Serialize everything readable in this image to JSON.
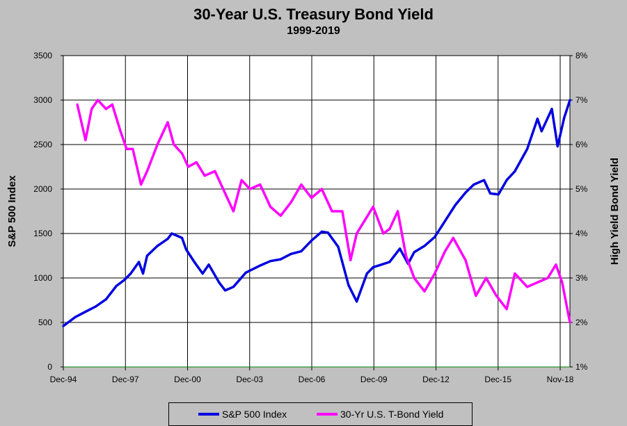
{
  "chart_data": {
    "type": "line",
    "title": "30-Year U.S. Treasury Bond Yield",
    "subtitle": "1999-2019",
    "xlabel": "",
    "ylabel_left": "S&P 500 Index",
    "ylabel_right": "High Yield Bond Yield",
    "x_tick_labels": [
      "Dec-94",
      "Dec-97",
      "Dec-00",
      "Dec-03",
      "Dec-06",
      "Dec-09",
      "Dec-12",
      "Dec-15",
      "Nov-18"
    ],
    "y_left_ticks": [
      "0",
      "500",
      "1000",
      "1500",
      "2000",
      "2500",
      "3000",
      "3500"
    ],
    "y_left_range": [
      0,
      3500
    ],
    "y_right_ticks": [
      "1%",
      "2%",
      "3%",
      "4%",
      "5%",
      "6%",
      "7%",
      "8%"
    ],
    "y_right_range": [
      1,
      8
    ],
    "x_range": [
      1994.92,
      2019.58
    ],
    "grid": true,
    "series": [
      {
        "name": "S&P 500 Index",
        "axis": "left",
        "color": "#0000e0",
        "x": [
          1994.92,
          1995.5,
          1996.0,
          1996.5,
          1997.0,
          1997.5,
          1997.9,
          1998.2,
          1998.6,
          1998.8,
          1999.0,
          1999.5,
          2000.0,
          2000.2,
          2000.7,
          2000.9,
          2001.3,
          2001.7,
          2002.0,
          2002.5,
          2002.8,
          2003.2,
          2003.8,
          2004.5,
          2005.0,
          2005.5,
          2006.0,
          2006.5,
          2007.0,
          2007.5,
          2007.8,
          2008.3,
          2008.8,
          2009.2,
          2009.7,
          2010.0,
          2010.4,
          2010.8,
          2011.3,
          2011.7,
          2012.0,
          2012.5,
          2013.0,
          2013.5,
          2014.0,
          2014.5,
          2014.9,
          2015.4,
          2015.7,
          2016.1,
          2016.5,
          2016.9,
          2017.5,
          2018.0,
          2018.2,
          2018.7,
          2018.98,
          2019.3,
          2019.58
        ],
        "values": [
          460,
          560,
          620,
          680,
          760,
          910,
          980,
          1050,
          1180,
          1050,
          1250,
          1360,
          1440,
          1500,
          1450,
          1320,
          1180,
          1050,
          1150,
          950,
          860,
          900,
          1060,
          1140,
          1190,
          1210,
          1270,
          1300,
          1420,
          1520,
          1510,
          1350,
          920,
          735,
          1050,
          1120,
          1150,
          1180,
          1330,
          1160,
          1290,
          1360,
          1460,
          1640,
          1820,
          1960,
          2050,
          2100,
          1950,
          1940,
          2100,
          2200,
          2450,
          2790,
          2650,
          2900,
          2480,
          2800,
          3000
        ]
      },
      {
        "name": "30-Yr U.S. T-Bond Yield",
        "axis": "right",
        "color": "#ff00ff",
        "x": [
          1995.6,
          1996.0,
          1996.3,
          1996.6,
          1997.0,
          1997.3,
          1997.7,
          1998.0,
          1998.3,
          1998.7,
          1999.0,
          1999.5,
          2000.0,
          2000.3,
          2000.7,
          2001.0,
          2001.4,
          2001.8,
          2002.3,
          2002.8,
          2003.2,
          2003.6,
          2004.0,
          2004.5,
          2005.0,
          2005.5,
          2006.0,
          2006.5,
          2007.0,
          2007.5,
          2008.0,
          2008.5,
          2008.9,
          2009.2,
          2009.6,
          2010.0,
          2010.5,
          2010.8,
          2011.2,
          2011.6,
          2012.0,
          2012.5,
          2013.0,
          2013.5,
          2013.9,
          2014.5,
          2015.0,
          2015.5,
          2016.0,
          2016.5,
          2016.9,
          2017.5,
          2018.0,
          2018.5,
          2018.9,
          2019.2,
          2019.58
        ],
        "values": [
          6.9,
          6.1,
          6.8,
          7.0,
          6.8,
          6.9,
          6.3,
          5.9,
          5.9,
          5.1,
          5.4,
          6.0,
          6.5,
          6.0,
          5.8,
          5.5,
          5.6,
          5.3,
          5.4,
          4.9,
          4.5,
          5.2,
          5.0,
          5.1,
          4.6,
          4.4,
          4.7,
          5.1,
          4.8,
          5.0,
          4.5,
          4.5,
          3.4,
          4.0,
          4.3,
          4.6,
          4.0,
          4.1,
          4.5,
          3.5,
          3.0,
          2.7,
          3.1,
          3.6,
          3.9,
          3.4,
          2.6,
          3.0,
          2.6,
          2.3,
          3.1,
          2.8,
          2.9,
          3.0,
          3.3,
          2.9,
          2.0
        ]
      }
    ]
  },
  "legend": {
    "items": [
      {
        "label": "S&P 500 Index",
        "color": "#0000e0"
      },
      {
        "label": "30-Yr U.S. T-Bond Yield",
        "color": "#ff00ff"
      }
    ]
  }
}
